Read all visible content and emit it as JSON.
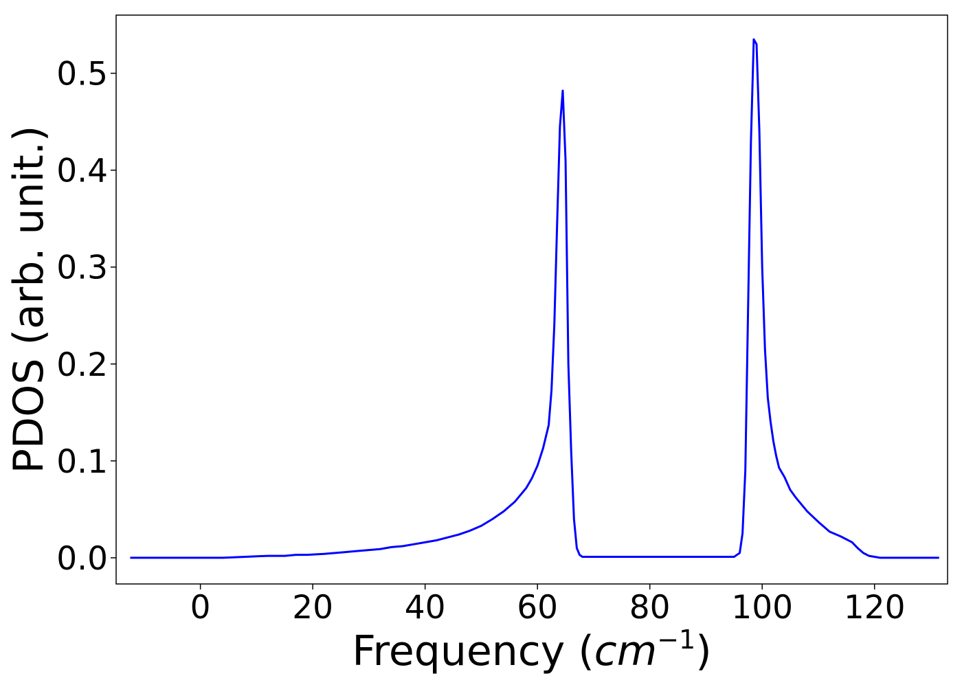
{
  "chart_data": {
    "type": "line",
    "xlabel": "Frequency (",
    "xlabel_math_base": "cm",
    "xlabel_math_exp": "−1",
    "xlabel_close": ")",
    "ylabel": "PDOS (arb. unit.)",
    "xlim": [
      -15,
      133
    ],
    "ylim": [
      -0.027,
      0.56
    ],
    "xticks": [
      0,
      20,
      40,
      60,
      80,
      100,
      120
    ],
    "xtick_labels": [
      "0",
      "20",
      "40",
      "60",
      "80",
      "100",
      "120"
    ],
    "yticks": [
      0.0,
      0.1,
      0.2,
      0.3,
      0.4,
      0.5
    ],
    "ytick_labels": [
      "0.0",
      "0.1",
      "0.2",
      "0.3",
      "0.4",
      "0.5"
    ],
    "grid": false,
    "legend": false,
    "line_color": "#0000ff",
    "series": [
      {
        "x": [
          -12.5,
          -5,
          0,
          4,
          8,
          12,
          13,
          15,
          17,
          19,
          22,
          24,
          26,
          28,
          30,
          32,
          34,
          36,
          38,
          40,
          42,
          44,
          46,
          48,
          50,
          52,
          54,
          56,
          58,
          59,
          60,
          61,
          62,
          62.5,
          63,
          63.5,
          64,
          64.5,
          65,
          65.5,
          66,
          66.5,
          67,
          67.5,
          68,
          68.5,
          69,
          69.5,
          70,
          72,
          80,
          90,
          95,
          95.5,
          96,
          96.5,
          97,
          97.5,
          98,
          98.5,
          99,
          99.5,
          100,
          100.5,
          101,
          101.5,
          102,
          102.5,
          103,
          104,
          105,
          106,
          107,
          108,
          110,
          112,
          114,
          116,
          117,
          118,
          119,
          120,
          121,
          122,
          124,
          131.5
        ],
        "y": [
          0.0,
          0.0,
          0.0,
          0.0,
          0.001,
          0.002,
          0.002,
          0.002,
          0.003,
          0.003,
          0.004,
          0.005,
          0.006,
          0.007,
          0.008,
          0.009,
          0.011,
          0.012,
          0.014,
          0.016,
          0.018,
          0.021,
          0.024,
          0.028,
          0.033,
          0.04,
          0.048,
          0.058,
          0.072,
          0.082,
          0.095,
          0.113,
          0.137,
          0.173,
          0.24,
          0.345,
          0.445,
          0.482,
          0.41,
          0.2,
          0.11,
          0.04,
          0.01,
          0.003,
          0.001,
          0.001,
          0.001,
          0.001,
          0.001,
          0.001,
          0.001,
          0.001,
          0.001,
          0.003,
          0.005,
          0.025,
          0.09,
          0.26,
          0.43,
          0.535,
          0.53,
          0.44,
          0.3,
          0.215,
          0.165,
          0.14,
          0.12,
          0.105,
          0.093,
          0.083,
          0.07,
          0.062,
          0.055,
          0.048,
          0.037,
          0.027,
          0.022,
          0.016,
          0.01,
          0.005,
          0.002,
          0.001,
          0.0,
          0.0,
          0.0,
          0.0
        ]
      }
    ]
  }
}
